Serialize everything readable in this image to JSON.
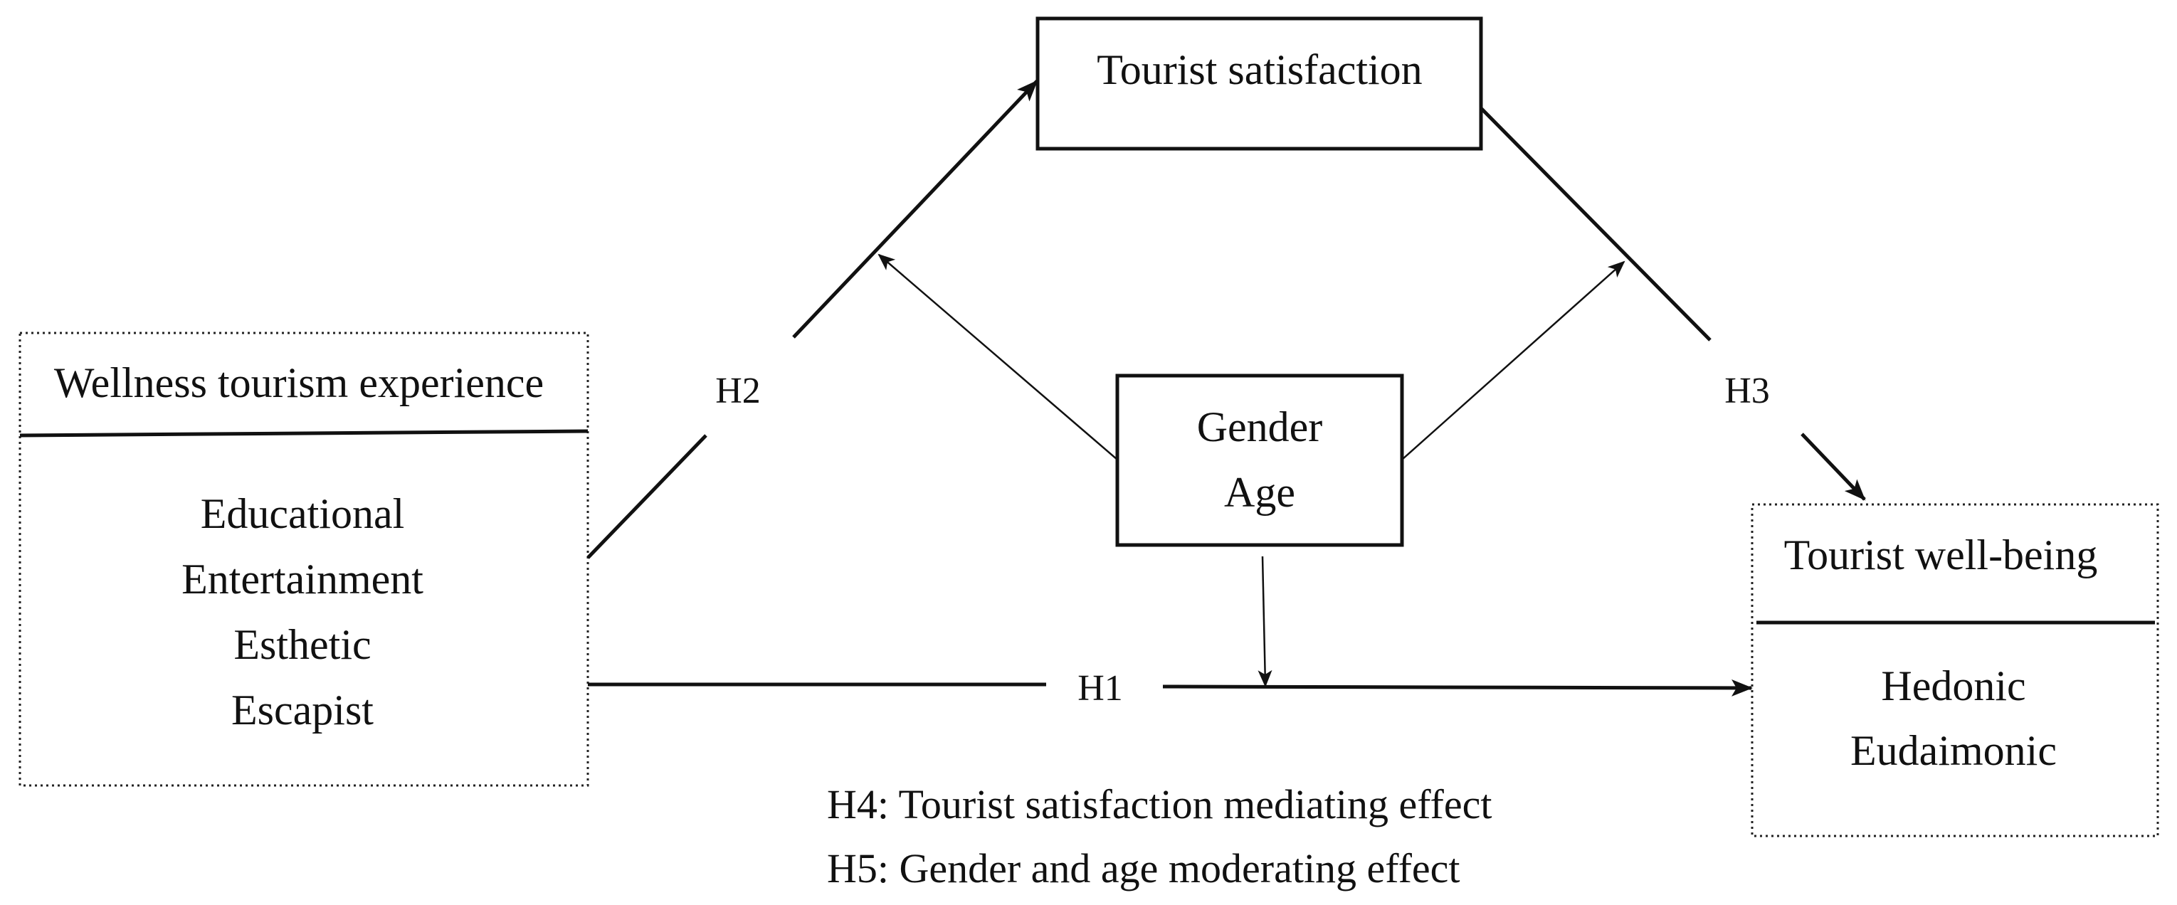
{
  "nodes": {
    "wellness": {
      "title": "Wellness tourism experience",
      "items": [
        "Educational",
        "Entertainment",
        "Esthetic",
        "Escapist"
      ]
    },
    "satisfaction": {
      "title": "Tourist satisfaction"
    },
    "moderators": {
      "items": [
        "Gender",
        "Age"
      ]
    },
    "wellbeing": {
      "title": "Tourist well-being",
      "items": [
        "Hedonic",
        "Eudaimonic"
      ]
    }
  },
  "edges": {
    "h1": "H1",
    "h2": "H2",
    "h3": "H3"
  },
  "notes": [
    "H4: Tourist satisfaction mediating effect",
    "H5: Gender and age moderating effect"
  ]
}
